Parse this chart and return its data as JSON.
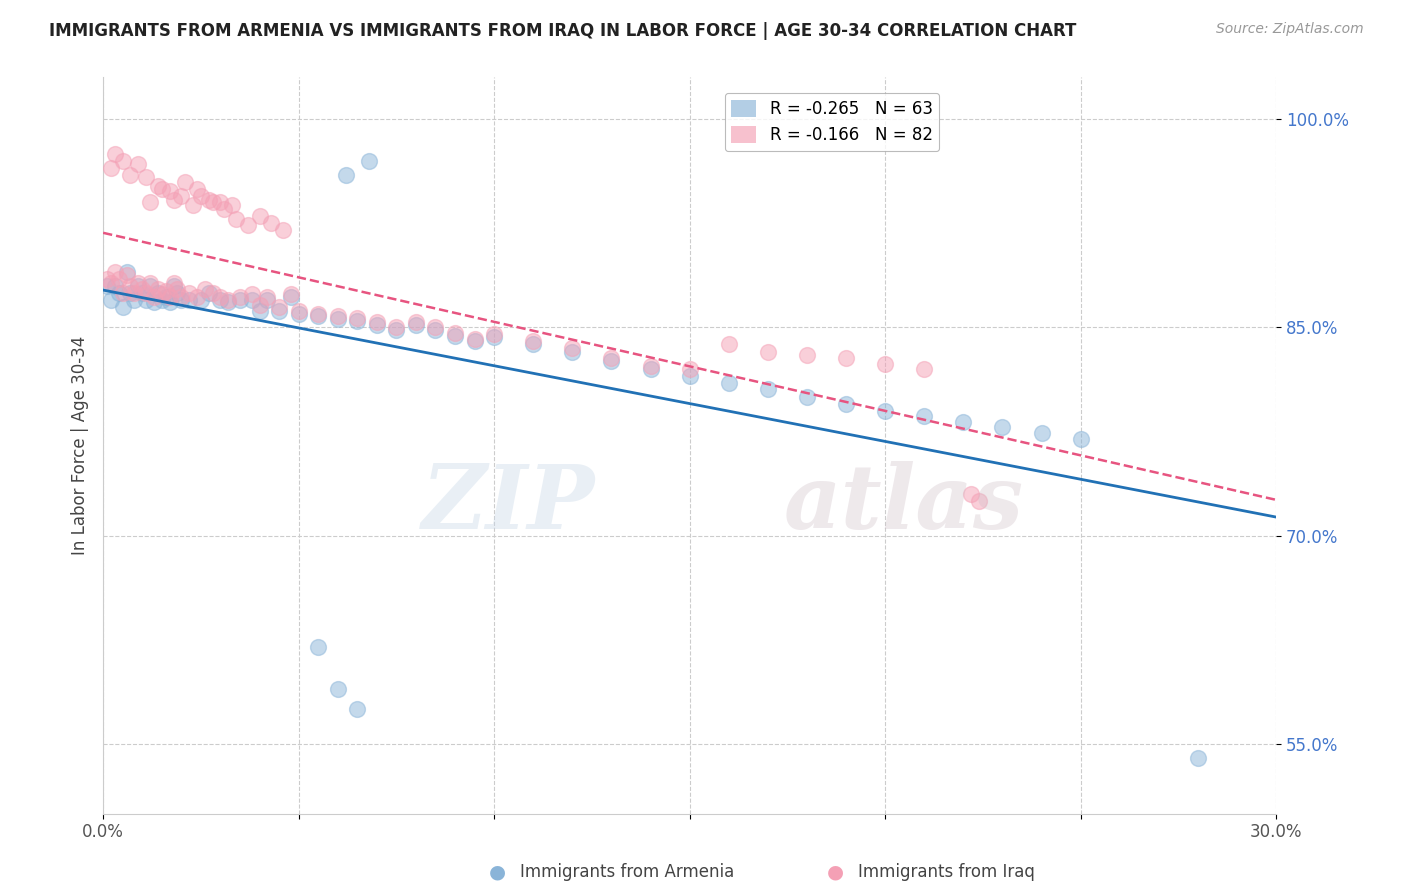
{
  "title": "IMMIGRANTS FROM ARMENIA VS IMMIGRANTS FROM IRAQ IN LABOR FORCE | AGE 30-34 CORRELATION CHART",
  "source": "Source: ZipAtlas.com",
  "ylabel": "In Labor Force | Age 30-34",
  "xlim": [
    0.0,
    0.3
  ],
  "ylim": [
    0.5,
    1.03
  ],
  "xticks": [
    0.0,
    0.05,
    0.1,
    0.15,
    0.2,
    0.25,
    0.3
  ],
  "xticklabels": [
    "0.0%",
    "",
    "",
    "",
    "",
    "",
    "30.0%"
  ],
  "yticks": [
    0.55,
    0.7,
    0.85,
    1.0
  ],
  "yticklabels": [
    "55.0%",
    "70.0%",
    "85.0%",
    "100.0%"
  ],
  "armenia_color": "#8ab4d8",
  "iraq_color": "#f4a0b5",
  "armenia_R": -0.265,
  "armenia_N": 63,
  "iraq_R": -0.166,
  "iraq_N": 82,
  "watermark_zip": "ZIP",
  "watermark_atlas": "atlas",
  "legend_label_armenia": "Immigrants from Armenia",
  "legend_label_iraq": "Immigrants from Iraq",
  "armenia_x": [
    0.001,
    0.002,
    0.003,
    0.004,
    0.005,
    0.006,
    0.007,
    0.008,
    0.009,
    0.01,
    0.011,
    0.012,
    0.013,
    0.014,
    0.015,
    0.016,
    0.017,
    0.018,
    0.019,
    0.02,
    0.022,
    0.025,
    0.027,
    0.03,
    0.032,
    0.035,
    0.038,
    0.04,
    0.042,
    0.045,
    0.048,
    0.05,
    0.055,
    0.06,
    0.065,
    0.07,
    0.075,
    0.08,
    0.085,
    0.09,
    0.095,
    0.1,
    0.11,
    0.12,
    0.13,
    0.14,
    0.15,
    0.16,
    0.17,
    0.18,
    0.19,
    0.2,
    0.21,
    0.22,
    0.23,
    0.24,
    0.25,
    0.055,
    0.06,
    0.065,
    0.062,
    0.068,
    0.28
  ],
  "armenia_y": [
    0.88,
    0.87,
    0.88,
    0.875,
    0.865,
    0.89,
    0.875,
    0.87,
    0.88,
    0.875,
    0.87,
    0.88,
    0.868,
    0.875,
    0.87,
    0.872,
    0.868,
    0.88,
    0.875,
    0.87,
    0.87,
    0.87,
    0.875,
    0.87,
    0.868,
    0.87,
    0.87,
    0.862,
    0.87,
    0.862,
    0.872,
    0.86,
    0.858,
    0.856,
    0.855,
    0.852,
    0.848,
    0.852,
    0.848,
    0.844,
    0.84,
    0.843,
    0.838,
    0.832,
    0.826,
    0.82,
    0.815,
    0.81,
    0.806,
    0.8,
    0.795,
    0.79,
    0.786,
    0.782,
    0.778,
    0.774,
    0.77,
    0.62,
    0.59,
    0.575,
    0.96,
    0.97,
    0.54
  ],
  "iraq_x": [
    0.001,
    0.002,
    0.003,
    0.004,
    0.005,
    0.006,
    0.007,
    0.008,
    0.009,
    0.01,
    0.011,
    0.012,
    0.013,
    0.014,
    0.015,
    0.016,
    0.017,
    0.018,
    0.019,
    0.02,
    0.022,
    0.024,
    0.026,
    0.028,
    0.03,
    0.032,
    0.035,
    0.038,
    0.04,
    0.042,
    0.045,
    0.048,
    0.05,
    0.055,
    0.06,
    0.065,
    0.07,
    0.075,
    0.08,
    0.085,
    0.09,
    0.095,
    0.1,
    0.11,
    0.12,
    0.13,
    0.14,
    0.15,
    0.16,
    0.17,
    0.18,
    0.19,
    0.2,
    0.21,
    0.012,
    0.015,
    0.018,
    0.02,
    0.023,
    0.025,
    0.028,
    0.031,
    0.034,
    0.037,
    0.04,
    0.043,
    0.046,
    0.002,
    0.003,
    0.005,
    0.007,
    0.009,
    0.011,
    0.014,
    0.017,
    0.021,
    0.024,
    0.027,
    0.03,
    0.033,
    0.222,
    0.224
  ],
  "iraq_y": [
    0.885,
    0.882,
    0.89,
    0.885,
    0.875,
    0.888,
    0.88,
    0.875,
    0.882,
    0.878,
    0.875,
    0.882,
    0.872,
    0.878,
    0.874,
    0.876,
    0.872,
    0.882,
    0.878,
    0.872,
    0.875,
    0.872,
    0.878,
    0.875,
    0.872,
    0.87,
    0.872,
    0.874,
    0.866,
    0.872,
    0.865,
    0.874,
    0.862,
    0.86,
    0.858,
    0.857,
    0.854,
    0.85,
    0.854,
    0.85,
    0.846,
    0.842,
    0.845,
    0.84,
    0.835,
    0.828,
    0.822,
    0.82,
    0.838,
    0.832,
    0.83,
    0.828,
    0.824,
    0.82,
    0.94,
    0.95,
    0.942,
    0.945,
    0.938,
    0.945,
    0.94,
    0.935,
    0.928,
    0.924,
    0.93,
    0.925,
    0.92,
    0.965,
    0.975,
    0.97,
    0.96,
    0.968,
    0.958,
    0.952,
    0.948,
    0.955,
    0.95,
    0.942,
    0.94,
    0.938,
    0.73,
    0.725
  ],
  "background_color": "#ffffff",
  "grid_color": "#cccccc",
  "trendline_armenia_color": "#2171b5",
  "trendline_iraq_color": "#e75480"
}
